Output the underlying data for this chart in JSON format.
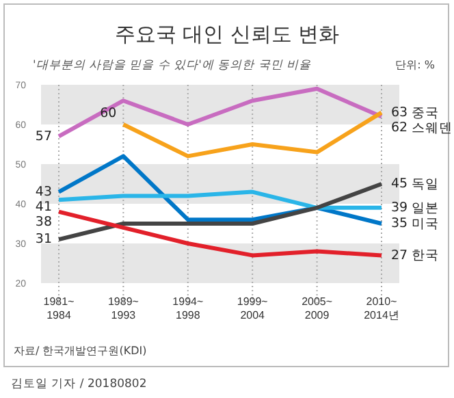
{
  "chart_data": {
    "type": "line",
    "title": "주요국 대인 신뢰도 변화",
    "subtitle": "'대부분의 사람을 믿을 수 있다'에 동의한 국민 비율",
    "categories": [
      "1981~1984",
      "1989~1993",
      "1994~1998",
      "1999~2004",
      "2005~2009",
      "2010~2014년"
    ],
    "series": [
      {
        "name": "스웨덴",
        "color": "#c86cc0",
        "values": [
          57,
          66,
          60,
          66,
          69,
          62
        ],
        "value_labels": [
          "57",
          null,
          null,
          null,
          null,
          "62"
        ]
      },
      {
        "name": "중국",
        "color": "#f7a21b",
        "values": [
          null,
          60,
          52,
          55,
          53,
          63
        ],
        "value_labels": [
          null,
          "60",
          null,
          null,
          null,
          "63"
        ]
      },
      {
        "name": "미국",
        "color": "#0077c8",
        "values": [
          43,
          52,
          36,
          36,
          39,
          35
        ],
        "value_labels": [
          "43",
          null,
          null,
          null,
          null,
          "35"
        ]
      },
      {
        "name": "일본",
        "color": "#2ab5e8",
        "values": [
          41,
          42,
          42,
          43,
          39,
          39
        ],
        "value_labels": [
          "41",
          null,
          null,
          null,
          null,
          "39"
        ]
      },
      {
        "name": "독일",
        "color": "#444444",
        "values": [
          31,
          35,
          35,
          35,
          39,
          45
        ],
        "value_labels": [
          "31",
          null,
          null,
          null,
          null,
          "45"
        ]
      },
      {
        "name": "한국",
        "color": "#e2202a",
        "values": [
          38,
          34,
          30,
          27,
          28,
          27
        ],
        "value_labels": [
          "38",
          null,
          null,
          null,
          null,
          "27"
        ]
      }
    ],
    "ylim": [
      20,
      70
    ],
    "yticks": [
      20,
      30,
      40,
      50,
      60,
      70
    ],
    "grid": "x",
    "bands": [
      {
        "axis": "y",
        "from": 60,
        "to": 70,
        "color": "#e6e6e6"
      },
      {
        "axis": "y",
        "from": 40,
        "to": 50,
        "color": "#e6e6e6"
      },
      {
        "axis": "y",
        "from": 20,
        "to": 30,
        "color": "#e6e6e6"
      }
    ],
    "annotations": [
      "단위: %",
      "자료/ 한국개발연구원(KDI)",
      "김토일 기자 / 20180802"
    ]
  }
}
